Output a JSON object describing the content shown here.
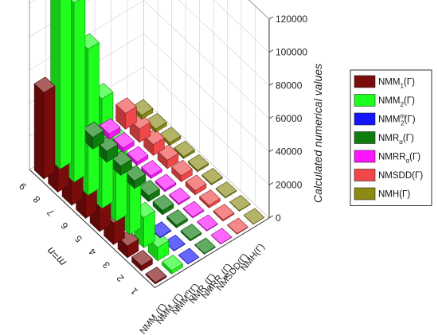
{
  "chart_data": {
    "type": "bar",
    "title": "",
    "zlabel": "Calculated numerical values",
    "xlabel": "m=n",
    "x": [
      1,
      2,
      3,
      4,
      5,
      6,
      7,
      8,
      9
    ],
    "zlim": [
      0,
      120000
    ],
    "zticks": [
      "0",
      "20000",
      "40000",
      "60000",
      "80000",
      "100000",
      "120000"
    ],
    "legend_position": "right",
    "series": [
      {
        "name": "NMM",
        "sub": "1",
        "sup": "",
        "suffix": "(Γ)",
        "color": "#7a0c0c",
        "values": [
          800,
          3000,
          7000,
          13000,
          20000,
          28000,
          36000,
          44000,
          52000
        ]
      },
      {
        "name": "NMM",
        "sub": "2",
        "sup": "",
        "suffix": "(Γ)",
        "color": "#1eff1e",
        "values": [
          2000,
          8000,
          18000,
          32000,
          48000,
          66000,
          88000,
          108000,
          130000
        ]
      },
      {
        "name": "NMM",
        "sub": "2",
        "sup": "m",
        "suffix": "(Γ)",
        "color": "#1414ff",
        "values": [
          80,
          150,
          250,
          0,
          0,
          0,
          0,
          0,
          0
        ]
      },
      {
        "name": "NMR",
        "sub": "α",
        "sup": "",
        "suffix": "(Γ)",
        "color": "#0e7d0e",
        "values": [
          300,
          800,
          1500,
          2500,
          3500,
          4500,
          5500,
          6500,
          7000
        ]
      },
      {
        "name": "NMRR",
        "sub": "α",
        "sup": "",
        "suffix": "(Γ)",
        "color": "#ff14ff",
        "values": [
          150,
          300,
          500,
          800,
          1100,
          1500,
          2000,
          2500,
          3000
        ]
      },
      {
        "name": "NMSDD",
        "sub": "",
        "sup": "",
        "suffix": "(Γ)",
        "color": "#f04848",
        "values": [
          300,
          800,
          1500,
          2500,
          3500,
          5000,
          6500,
          8000,
          9500
        ]
      },
      {
        "name": "NMH",
        "sub": "",
        "sup": "",
        "suffix": "(Γ)",
        "color": "#8b8b14",
        "values": [
          100,
          200,
          400,
          600,
          900,
          1200,
          1600,
          2000,
          2400
        ]
      }
    ]
  }
}
